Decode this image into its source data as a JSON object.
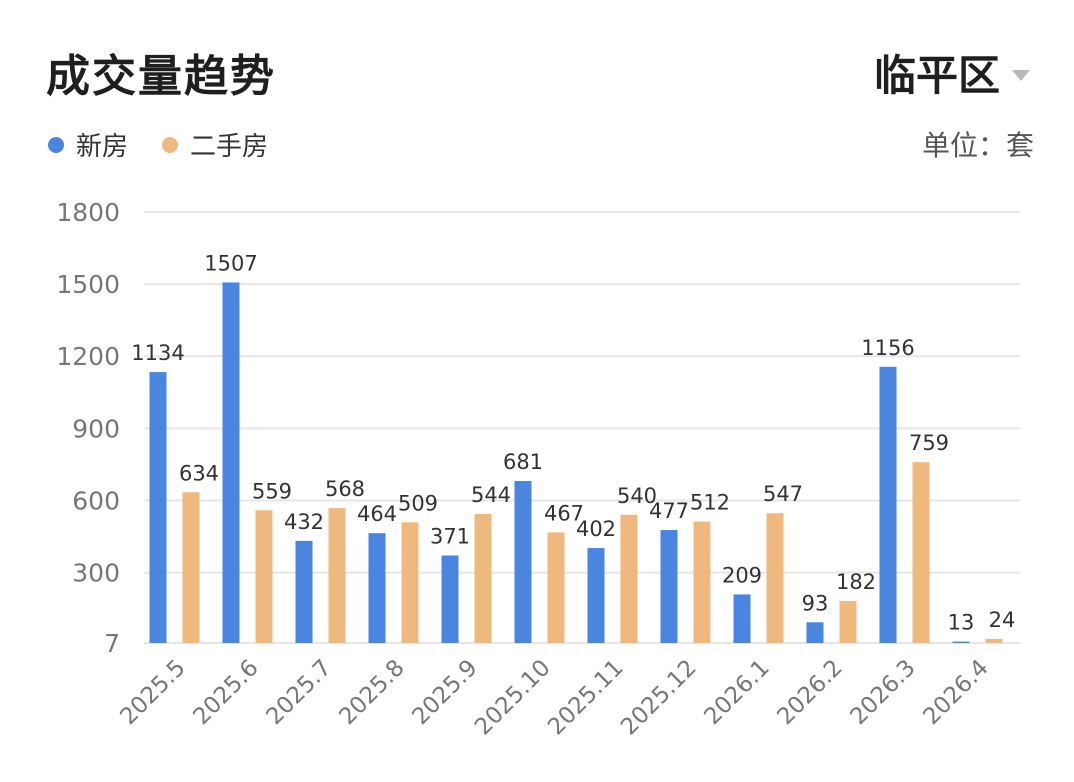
{
  "header": {
    "title": "成交量趋势",
    "region": "临平区",
    "unit": "单位：套"
  },
  "colors": {
    "new_home": "#4a86e0",
    "second_hand": "#efb87e",
    "grid": "#e6e6e6",
    "tick": "#777777"
  },
  "icons": {
    "region_dropdown": "chevron-down-icon"
  },
  "chart_data": {
    "type": "bar",
    "categories": [
      "2025.5",
      "2025.6",
      "2025.7",
      "2025.8",
      "2025.9",
      "2025.10",
      "2025.11",
      "2025.12",
      "2026.1",
      "2026.2",
      "2026.3",
      "2026.4"
    ],
    "series": [
      {
        "name": "新房",
        "values": [
          1134,
          1507,
          432,
          464,
          371,
          681,
          402,
          477,
          209,
          93,
          1156,
          13
        ]
      },
      {
        "name": "二手房",
        "values": [
          634,
          559,
          568,
          509,
          544,
          467,
          540,
          512,
          547,
          182,
          759,
          24
        ]
      }
    ],
    "y_ticks": [
      7,
      300,
      600,
      900,
      1200,
      1500,
      1800
    ],
    "ylim": [
      7,
      1800
    ],
    "grid": true,
    "legend": "top-left"
  }
}
